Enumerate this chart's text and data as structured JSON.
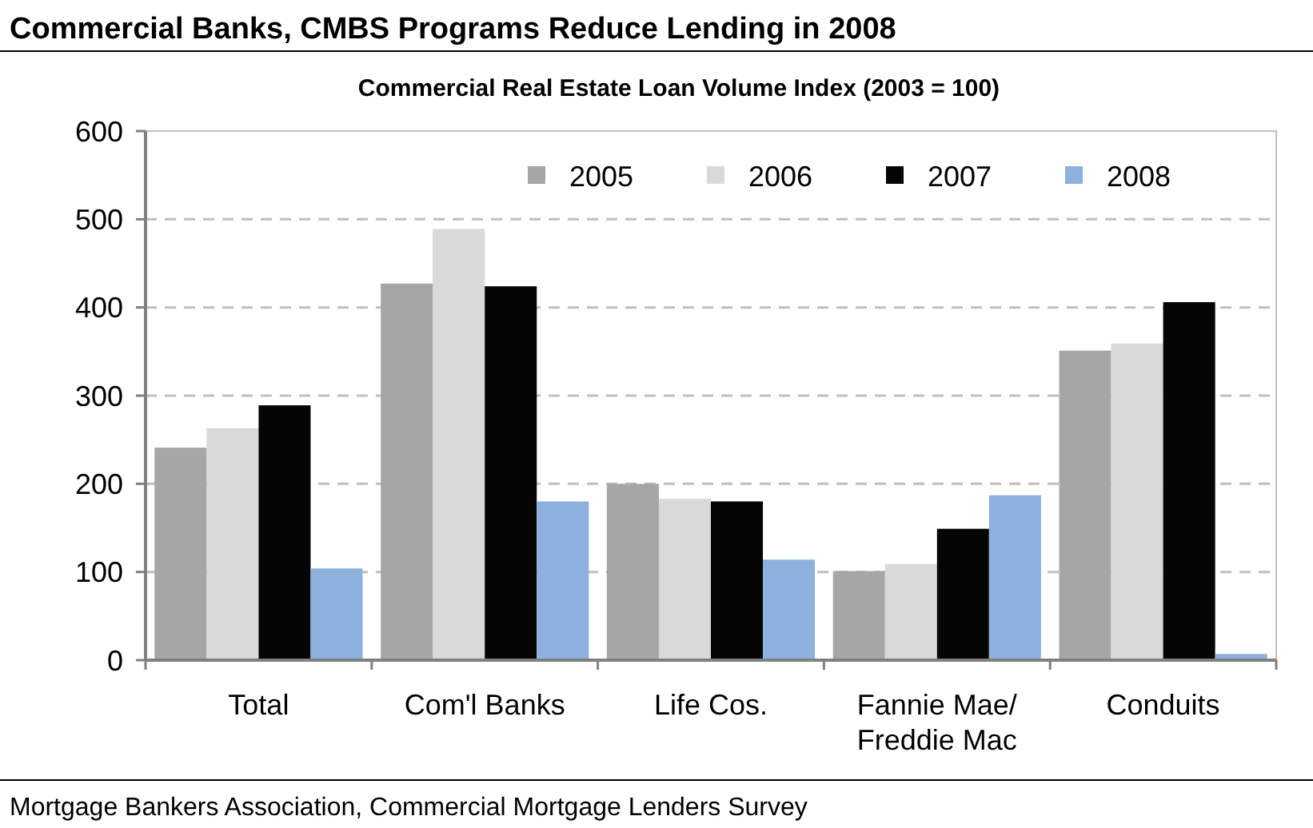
{
  "chart_data": {
    "type": "bar",
    "title": "Commercial Banks, CMBS Programs Reduce Lending in 2008",
    "subtitle": "Commercial Real Estate Loan Volume Index (2003 = 100)",
    "categories": [
      "Total",
      "Com'l Banks",
      "Life Cos.",
      "Fannie Mae/ Freddie Mac",
      "Conduits"
    ],
    "series": [
      {
        "name": "2005",
        "color": "#a6a6a6",
        "values": [
          241,
          427,
          200,
          101,
          351
        ]
      },
      {
        "name": "2006",
        "color": "#d9d9d9",
        "values": [
          263,
          489,
          183,
          109,
          359
        ]
      },
      {
        "name": "2007",
        "color": "#050505",
        "values": [
          289,
          424,
          180,
          149,
          406
        ]
      },
      {
        "name": "2008",
        "color": "#8db0dc",
        "values": [
          104,
          180,
          114,
          187,
          7
        ]
      }
    ],
    "ylim": [
      0,
      600
    ],
    "yticks": [
      0,
      100,
      200,
      300,
      400,
      500,
      600
    ],
    "grid": "y",
    "legend": "top right",
    "annotations": [
      "Mortgage Bankers Association, Commercial Mortgage Lenders Survey"
    ]
  }
}
